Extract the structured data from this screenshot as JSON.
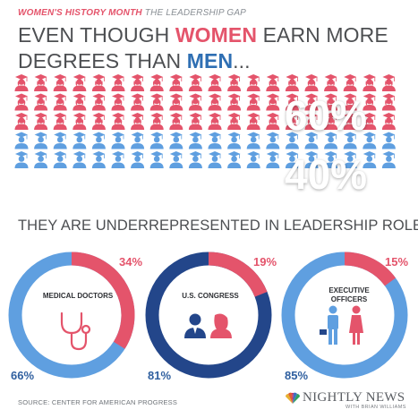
{
  "kicker": {
    "topic": "WOMEN'S HISTORY MONTH",
    "series": "THE LEADERSHIP GAP"
  },
  "headline": {
    "part1": "EVEN THOUGH ",
    "women": "WOMEN",
    "part2": " EARN MORE DEGREES THAN ",
    "men": "MEN",
    "part3": "..."
  },
  "subhead": "THEY ARE UNDERREPRESENTED IN LEADERSHIP ROLES",
  "source": "SOURCE: CENTER FOR AMERICAN PROGRESS",
  "logo": {
    "name": "NIGHTLY NEWS",
    "sub": "WITH BRIAN WILLIAMS"
  },
  "colors": {
    "women": "#e4546b",
    "men": "#2f6fb3",
    "men_dark": "#23468a",
    "men_light": "#5f9fe0",
    "text": "#4d4f52"
  },
  "chart_data": [
    {
      "type": "pictograph",
      "icon": "graduate-icon",
      "unit_count": 100,
      "series": [
        {
          "name": "WOMEN",
          "value": 60,
          "label": "60%"
        },
        {
          "name": "MEN",
          "value": 40,
          "label": "40%"
        }
      ]
    },
    {
      "type": "pie",
      "variant": "donut",
      "title": "MEDICAL DOCTORS",
      "icon": "stethoscope-icon",
      "ring_color": "#5f9fe0",
      "series": [
        {
          "name": "WOMEN",
          "value": 34,
          "label": "34%"
        },
        {
          "name": "MEN",
          "value": 66,
          "label": "66%"
        }
      ]
    },
    {
      "type": "pie",
      "variant": "donut",
      "title": "U.S. CONGRESS",
      "icon": "people-icon",
      "ring_color": "#23468a",
      "series": [
        {
          "name": "WOMEN",
          "value": 19,
          "label": "19%"
        },
        {
          "name": "MEN",
          "value": 81,
          "label": "81%"
        }
      ]
    },
    {
      "type": "pie",
      "variant": "donut",
      "title": "EXECUTIVE OFFICERS",
      "title_lines": [
        "EXECUTIVE",
        "OFFICERS"
      ],
      "icon": "businesspeople-icon",
      "ring_color": "#5f9fe0",
      "series": [
        {
          "name": "WOMEN",
          "value": 15,
          "label": "15%"
        },
        {
          "name": "MEN",
          "value": 85,
          "label": "85%"
        }
      ]
    }
  ]
}
